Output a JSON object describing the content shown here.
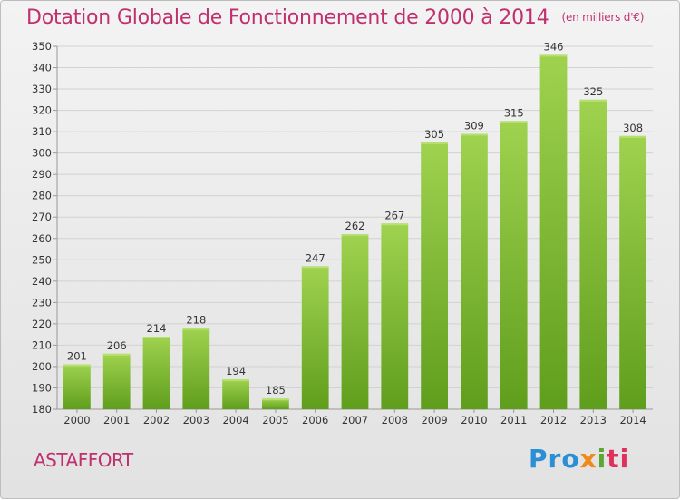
{
  "header": {
    "title": "Dotation Globale de Fonctionnement de 2000 à 2014",
    "subtitle": "(en milliers d'€)"
  },
  "footer": {
    "commune": "ASTAFFORT",
    "logo": [
      "Pro",
      "x",
      "i",
      "ti"
    ]
  },
  "colors": {
    "accent": "#c0306e",
    "bar_light": "#9fd24f",
    "bar_dark": "#5f9e1c"
  },
  "chart_data": {
    "type": "bar",
    "categories": [
      "2000",
      "2001",
      "2002",
      "2003",
      "2004",
      "2005",
      "2006",
      "2007",
      "2008",
      "2009",
      "2010",
      "2011",
      "2012",
      "2013",
      "2014"
    ],
    "values": [
      201,
      206,
      214,
      218,
      194,
      185,
      247,
      262,
      267,
      305,
      309,
      315,
      346,
      325,
      308
    ],
    "title": "Dotation Globale de Fonctionnement de 2000 à 2014",
    "subtitle": "(en milliers d'€)",
    "ylim": [
      180,
      350
    ],
    "yticks": [
      180,
      190,
      200,
      210,
      220,
      230,
      240,
      250,
      260,
      270,
      280,
      290,
      300,
      310,
      320,
      330,
      340,
      350
    ],
    "grid": true,
    "data_labels": true
  }
}
